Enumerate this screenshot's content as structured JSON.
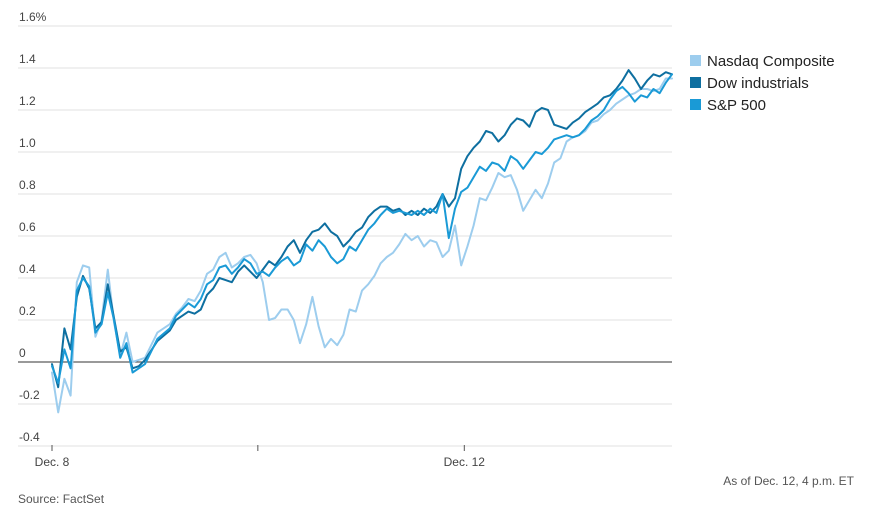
{
  "colors": {
    "nasdaq": "#9dcdee",
    "dow": "#0e6fa0",
    "sp500": "#1a9ad6",
    "grid": "#e2e2e2",
    "zero_line": "#333333"
  },
  "footer": {
    "source": "Source: FactSet",
    "as_of": "As of Dec. 12, 4 p.m. ET"
  },
  "chart_data": {
    "type": "line",
    "title": "",
    "xlabel": "",
    "ylabel": "",
    "ylim": [
      -0.4,
      1.6
    ],
    "xlim": [
      0,
      100
    ],
    "grid": true,
    "legend_position": "top-right",
    "y_ticks": [
      {
        "value": 1.6,
        "label": "1.6%"
      },
      {
        "value": 1.4,
        "label": "1.4"
      },
      {
        "value": 1.2,
        "label": "1.2"
      },
      {
        "value": 1.0,
        "label": "1.0"
      },
      {
        "value": 0.8,
        "label": "0.8"
      },
      {
        "value": 0.6,
        "label": "0.6"
      },
      {
        "value": 0.4,
        "label": "0.4"
      },
      {
        "value": 0.2,
        "label": "0.2"
      },
      {
        "value": 0,
        "label": "0"
      },
      {
        "value": -0.2,
        "label": "-0.2"
      },
      {
        "value": -0.4,
        "label": "-0.4"
      }
    ],
    "x_ticks": [
      {
        "pos": 0,
        "label": "Dec. 8"
      },
      {
        "pos": 33.2,
        "label": ""
      },
      {
        "pos": 66.5,
        "label": "Dec. 12"
      }
    ],
    "series": [
      {
        "name": "Nasdaq Composite",
        "color_key": "nasdaq",
        "x": [
          0,
          1,
          2,
          3,
          4,
          5,
          6,
          7,
          8,
          9,
          10,
          11,
          12,
          13,
          14,
          15,
          17,
          19,
          20,
          21,
          22,
          23,
          24,
          25,
          26,
          27,
          28,
          29,
          30,
          31,
          32,
          33,
          34,
          35,
          36,
          37,
          38,
          39,
          40,
          41,
          42,
          43,
          44,
          45,
          46,
          47,
          48,
          49,
          50,
          51,
          52,
          53,
          54,
          55,
          56,
          57,
          58,
          59,
          60,
          61,
          62,
          63,
          64,
          65,
          66,
          67,
          68,
          69,
          70,
          71,
          72,
          73,
          74,
          75,
          76,
          77,
          78,
          79,
          80,
          81,
          82,
          83,
          84,
          85,
          86,
          87,
          88,
          89,
          90,
          91,
          92,
          93,
          94,
          95,
          96,
          97,
          98,
          99,
          100
        ],
        "y": [
          -0.05,
          -0.24,
          -0.08,
          -0.16,
          0.38,
          0.46,
          0.45,
          0.12,
          0.2,
          0.44,
          0.19,
          0.03,
          0.14,
          0.0,
          0.01,
          0.02,
          0.14,
          0.18,
          0.23,
          0.26,
          0.3,
          0.29,
          0.34,
          0.42,
          0.44,
          0.5,
          0.52,
          0.45,
          0.47,
          0.5,
          0.51,
          0.47,
          0.38,
          0.2,
          0.21,
          0.25,
          0.25,
          0.2,
          0.09,
          0.18,
          0.31,
          0.17,
          0.07,
          0.11,
          0.08,
          0.13,
          0.25,
          0.24,
          0.34,
          0.37,
          0.41,
          0.47,
          0.5,
          0.52,
          0.56,
          0.61,
          0.58,
          0.6,
          0.55,
          0.58,
          0.57,
          0.5,
          0.53,
          0.65,
          0.46,
          0.55,
          0.65,
          0.78,
          0.77,
          0.83,
          0.9,
          0.88,
          0.89,
          0.82,
          0.72,
          0.77,
          0.82,
          0.78,
          0.85,
          0.95,
          0.97,
          1.05,
          1.07,
          1.08,
          1.1,
          1.14,
          1.15,
          1.18,
          1.2,
          1.23,
          1.25,
          1.27,
          1.28,
          1.3,
          1.3,
          1.29,
          1.3,
          1.35,
          1.35
        ]
      },
      {
        "name": "Dow industrials",
        "color_key": "dow",
        "x": [
          0,
          1,
          2,
          3,
          4,
          5,
          6,
          7,
          8,
          9,
          10,
          11,
          12,
          13,
          14,
          15,
          17,
          19,
          20,
          21,
          22,
          23,
          24,
          25,
          26,
          27,
          28,
          29,
          30,
          31,
          32,
          33,
          34,
          35,
          36,
          37,
          38,
          39,
          40,
          41,
          42,
          43,
          44,
          45,
          46,
          47,
          48,
          49,
          50,
          51,
          52,
          53,
          54,
          55,
          56,
          57,
          58,
          59,
          60,
          61,
          62,
          63,
          64,
          65,
          66,
          67,
          68,
          69,
          70,
          71,
          72,
          73,
          74,
          75,
          76,
          77,
          78,
          79,
          80,
          81,
          82,
          83,
          84,
          85,
          86,
          87,
          88,
          89,
          90,
          91,
          92,
          93,
          94,
          95,
          96,
          97,
          98,
          99,
          100
        ],
        "y": [
          -0.01,
          -0.12,
          0.16,
          0.06,
          0.31,
          0.41,
          0.35,
          0.16,
          0.19,
          0.37,
          0.21,
          0.05,
          0.07,
          -0.03,
          -0.02,
          0.01,
          0.1,
          0.15,
          0.2,
          0.22,
          0.24,
          0.23,
          0.25,
          0.32,
          0.35,
          0.4,
          0.39,
          0.38,
          0.43,
          0.46,
          0.43,
          0.4,
          0.44,
          0.48,
          0.46,
          0.5,
          0.55,
          0.58,
          0.52,
          0.58,
          0.62,
          0.63,
          0.66,
          0.62,
          0.6,
          0.55,
          0.58,
          0.62,
          0.64,
          0.69,
          0.72,
          0.74,
          0.74,
          0.72,
          0.73,
          0.7,
          0.72,
          0.7,
          0.73,
          0.71,
          0.74,
          0.8,
          0.74,
          0.78,
          0.92,
          0.98,
          1.02,
          1.05,
          1.1,
          1.09,
          1.05,
          1.08,
          1.13,
          1.16,
          1.15,
          1.12,
          1.19,
          1.21,
          1.2,
          1.13,
          1.12,
          1.11,
          1.14,
          1.16,
          1.19,
          1.21,
          1.23,
          1.26,
          1.27,
          1.3,
          1.34,
          1.39,
          1.35,
          1.3,
          1.34,
          1.37,
          1.36,
          1.38,
          1.37
        ]
      },
      {
        "name": "S&P 500",
        "color_key": "sp500",
        "x": [
          0,
          1,
          2,
          3,
          4,
          5,
          6,
          7,
          8,
          9,
          10,
          11,
          12,
          13,
          14,
          15,
          17,
          19,
          20,
          21,
          22,
          23,
          24,
          25,
          26,
          27,
          28,
          29,
          30,
          31,
          32,
          33,
          34,
          35,
          36,
          37,
          38,
          39,
          40,
          41,
          42,
          43,
          44,
          45,
          46,
          47,
          48,
          49,
          50,
          51,
          52,
          53,
          54,
          55,
          56,
          57,
          58,
          59,
          60,
          61,
          62,
          63,
          64,
          65,
          66,
          67,
          68,
          69,
          70,
          71,
          72,
          73,
          74,
          75,
          76,
          77,
          78,
          79,
          80,
          81,
          82,
          83,
          84,
          85,
          86,
          87,
          88,
          89,
          90,
          91,
          92,
          93,
          94,
          95,
          96,
          97,
          98,
          99,
          100
        ],
        "y": [
          -0.02,
          -0.1,
          0.06,
          -0.03,
          0.34,
          0.4,
          0.36,
          0.14,
          0.18,
          0.33,
          0.2,
          0.02,
          0.09,
          -0.05,
          -0.03,
          -0.01,
          0.11,
          0.16,
          0.22,
          0.25,
          0.28,
          0.26,
          0.3,
          0.37,
          0.39,
          0.45,
          0.46,
          0.42,
          0.45,
          0.49,
          0.47,
          0.42,
          0.43,
          0.41,
          0.45,
          0.48,
          0.5,
          0.46,
          0.48,
          0.56,
          0.53,
          0.58,
          0.55,
          0.5,
          0.47,
          0.49,
          0.55,
          0.53,
          0.58,
          0.63,
          0.66,
          0.7,
          0.73,
          0.71,
          0.72,
          0.71,
          0.7,
          0.72,
          0.7,
          0.73,
          0.71,
          0.8,
          0.59,
          0.73,
          0.81,
          0.83,
          0.88,
          0.93,
          0.91,
          0.95,
          0.94,
          0.91,
          0.98,
          0.96,
          0.92,
          0.96,
          1.0,
          0.99,
          1.02,
          1.06,
          1.07,
          1.08,
          1.07,
          1.08,
          1.11,
          1.15,
          1.17,
          1.2,
          1.25,
          1.29,
          1.31,
          1.28,
          1.24,
          1.27,
          1.26,
          1.3,
          1.28,
          1.33,
          1.37
        ]
      }
    ]
  }
}
